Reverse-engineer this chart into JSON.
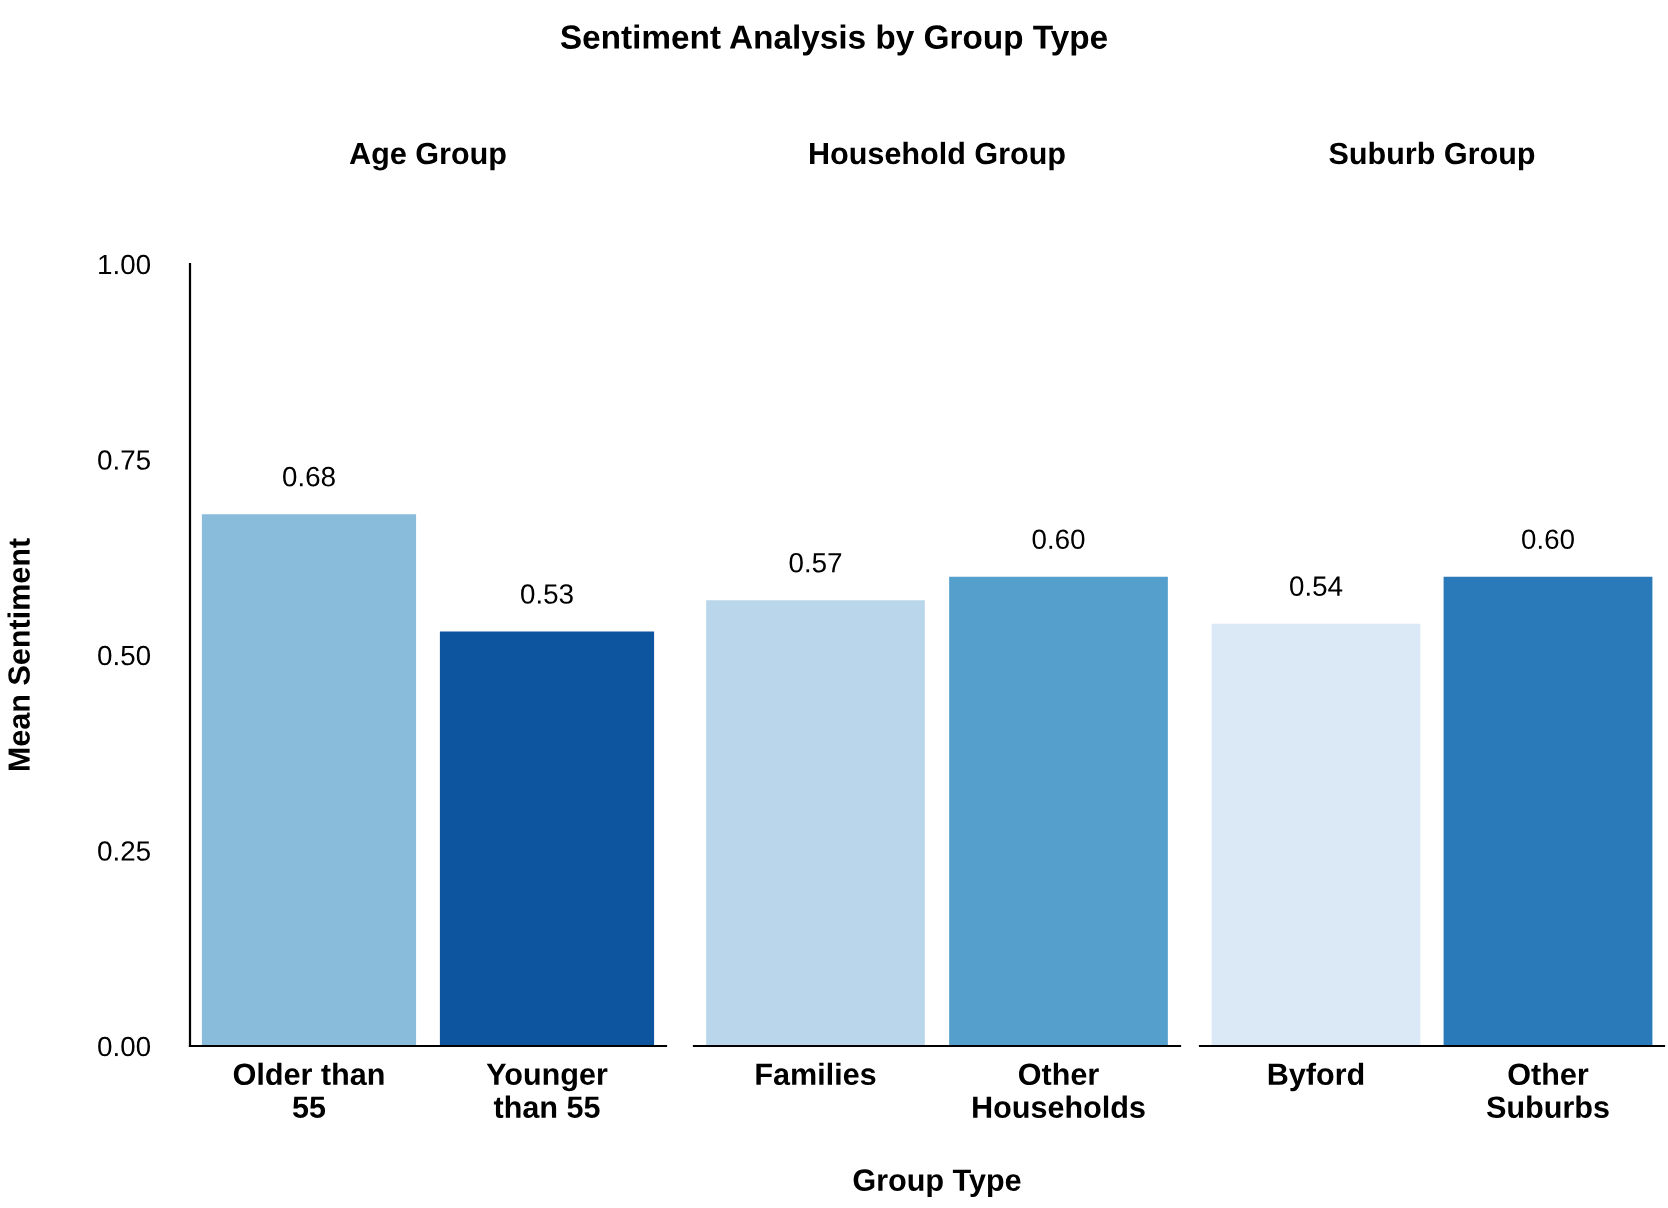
{
  "chart_data": [
    {
      "type": "bar",
      "title": "Age Group",
      "annotations": [
        "Sentiment Analysis by Group Type"
      ],
      "ylabel": "Mean Sentiment",
      "categories": [
        "Older than\n55",
        "Younger\nthan 55"
      ],
      "values": [
        0.68,
        0.53
      ],
      "value_labels": [
        "0.68",
        "0.53"
      ],
      "colors": [
        "#89bcdb",
        "#0d559f"
      ],
      "ylim": [
        0,
        1
      ],
      "yticks": [
        {
          "value": 0,
          "label": "0.00"
        },
        0.25,
        {
          "value": 0.5,
          "label": "0.50"
        },
        0.75,
        {
          "value": 1,
          "label": "1.00"
        }
      ],
      "grid": false
    },
    {
      "type": "bar",
      "title": "Household Group",
      "xlabel": "Group Type",
      "categories": [
        "Families",
        "Other\nHouseholds"
      ],
      "values": [
        0.57,
        0.6
      ],
      "value_labels": [
        "0.57",
        "0.60"
      ],
      "colors": [
        "#bad6ea",
        "#559fcd"
      ],
      "ylim": [
        0,
        1
      ],
      "tick_labels": "x",
      "grid": false
    },
    {
      "type": "bar",
      "title": "Suburb Group",
      "categories": [
        "Byford",
        "Other\nSuburbs"
      ],
      "values": [
        0.54,
        0.6
      ],
      "value_labels": [
        "0.54",
        "0.60"
      ],
      "colors": [
        "#dbe8f5",
        "#2a7aba"
      ],
      "ylim": [
        0,
        1
      ],
      "tick_labels": "x",
      "grid": false
    }
  ]
}
